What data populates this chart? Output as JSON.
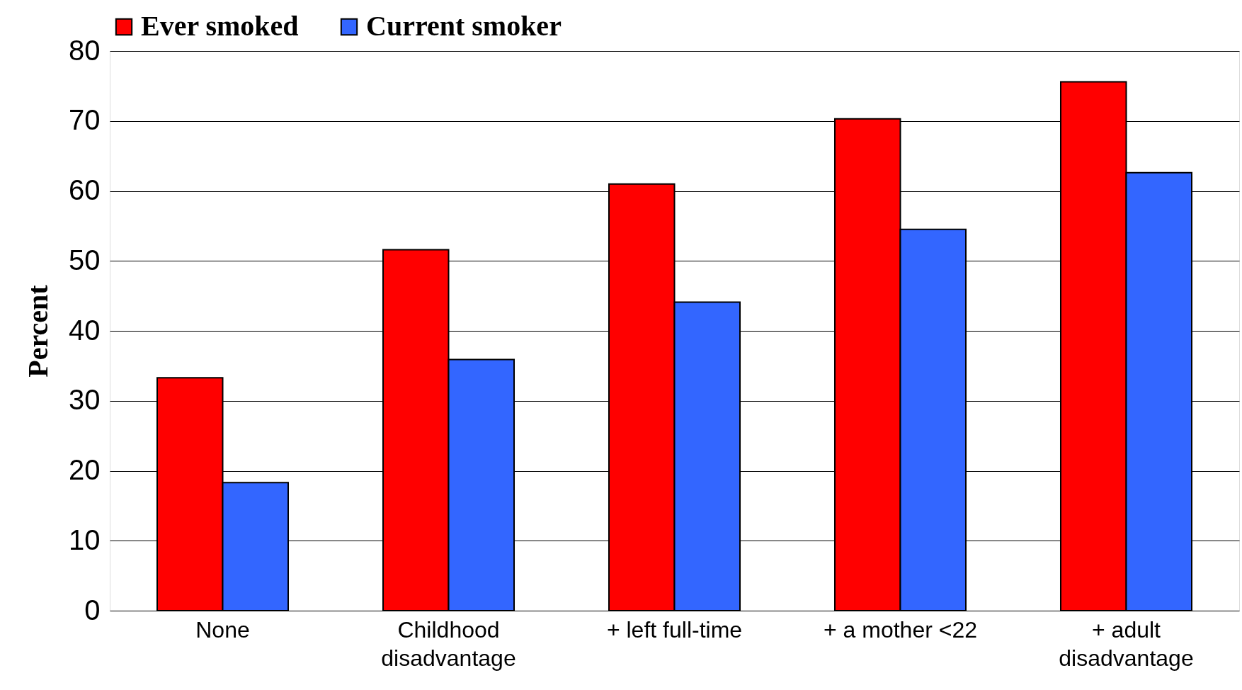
{
  "chart_data": {
    "type": "bar",
    "ylabel": "Percent",
    "categories": [
      "None",
      "Childhood\ndisadvantage",
      "+ left full-time",
      "+ a mother <22",
      "+ adult\ndisadvantage"
    ],
    "series": [
      {
        "name": "Ever smoked",
        "color": "#ff0000",
        "values": [
          33.3,
          51.6,
          61.0,
          70.3,
          75.6
        ]
      },
      {
        "name": "Current smoker",
        "color": "#3366ff",
        "values": [
          18.3,
          35.9,
          44.1,
          54.5,
          62.6
        ]
      }
    ],
    "ylim": [
      0,
      80
    ],
    "yticks": [
      0,
      10,
      20,
      30,
      40,
      50,
      60,
      70,
      80
    ],
    "grid": "y",
    "legend": "top"
  }
}
